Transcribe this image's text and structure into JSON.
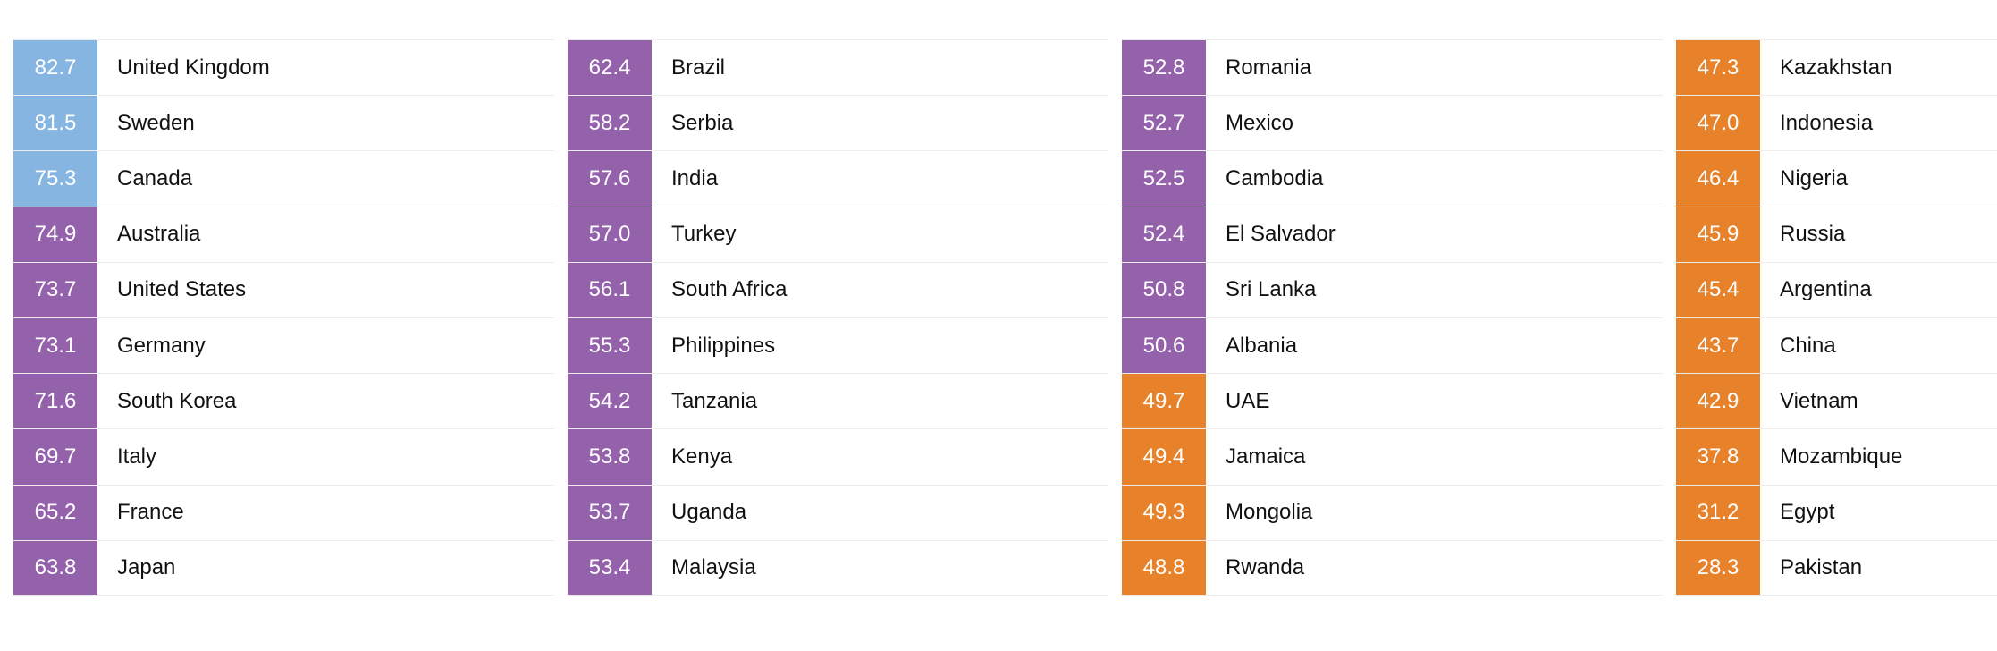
{
  "chart_data": {
    "type": "table",
    "columns": [
      [
        {
          "score": "82.7",
          "country": "United Kingdom",
          "color": "#85b5e0"
        },
        {
          "score": "81.5",
          "country": "Sweden",
          "color": "#85b5e0"
        },
        {
          "score": "75.3",
          "country": "Canada",
          "color": "#85b5e0"
        },
        {
          "score": "74.9",
          "country": "Australia",
          "color": "#9461ab"
        },
        {
          "score": "73.7",
          "country": "United States",
          "color": "#9461ab"
        },
        {
          "score": "73.1",
          "country": "Germany",
          "color": "#9461ab"
        },
        {
          "score": "71.6",
          "country": "South Korea",
          "color": "#9461ab"
        },
        {
          "score": "69.7",
          "country": "Italy",
          "color": "#9461ab"
        },
        {
          "score": "65.2",
          "country": "France",
          "color": "#9461ab"
        },
        {
          "score": "63.8",
          "country": "Japan",
          "color": "#9461ab"
        }
      ],
      [
        {
          "score": "62.4",
          "country": "Brazil",
          "color": "#9461ab"
        },
        {
          "score": "58.2",
          "country": "Serbia",
          "color": "#9461ab"
        },
        {
          "score": "57.6",
          "country": "India",
          "color": "#9461ab"
        },
        {
          "score": "57.0",
          "country": "Turkey",
          "color": "#9461ab"
        },
        {
          "score": "56.1",
          "country": "South Africa",
          "color": "#9461ab"
        },
        {
          "score": "55.3",
          "country": "Philippines",
          "color": "#9461ab"
        },
        {
          "score": "54.2",
          "country": "Tanzania",
          "color": "#9461ab"
        },
        {
          "score": "53.8",
          "country": "Kenya",
          "color": "#9461ab"
        },
        {
          "score": "53.7",
          "country": "Uganda",
          "color": "#9461ab"
        },
        {
          "score": "53.4",
          "country": "Malaysia",
          "color": "#9461ab"
        }
      ],
      [
        {
          "score": "52.8",
          "country": "Romania",
          "color": "#9461ab"
        },
        {
          "score": "52.7",
          "country": "Mexico",
          "color": "#9461ab"
        },
        {
          "score": "52.5",
          "country": "Cambodia",
          "color": "#9461ab"
        },
        {
          "score": "52.4",
          "country": "El Salvador",
          "color": "#9461ab"
        },
        {
          "score": "50.8",
          "country": "Sri Lanka",
          "color": "#9461ab"
        },
        {
          "score": "50.6",
          "country": "Albania",
          "color": "#9461ab"
        },
        {
          "score": "49.7",
          "country": "UAE",
          "color": "#e8822a"
        },
        {
          "score": "49.4",
          "country": "Jamaica",
          "color": "#e8822a"
        },
        {
          "score": "49.3",
          "country": "Mongolia",
          "color": "#e8822a"
        },
        {
          "score": "48.8",
          "country": "Rwanda",
          "color": "#e8822a"
        }
      ],
      [
        {
          "score": "47.3",
          "country": "Kazakhstan",
          "color": "#e8822a"
        },
        {
          "score": "47.0",
          "country": "Indonesia",
          "color": "#e8822a"
        },
        {
          "score": "46.4",
          "country": "Nigeria",
          "color": "#e8822a"
        },
        {
          "score": "45.9",
          "country": "Russia",
          "color": "#e8822a"
        },
        {
          "score": "45.4",
          "country": "Argentina",
          "color": "#e8822a"
        },
        {
          "score": "43.7",
          "country": "China",
          "color": "#e8822a"
        },
        {
          "score": "42.9",
          "country": "Vietnam",
          "color": "#e8822a"
        },
        {
          "score": "37.8",
          "country": "Mozambique",
          "color": "#e8822a"
        },
        {
          "score": "31.2",
          "country": "Egypt",
          "color": "#e8822a"
        },
        {
          "score": "28.3",
          "country": "Pakistan",
          "color": "#e8822a"
        }
      ]
    ]
  }
}
